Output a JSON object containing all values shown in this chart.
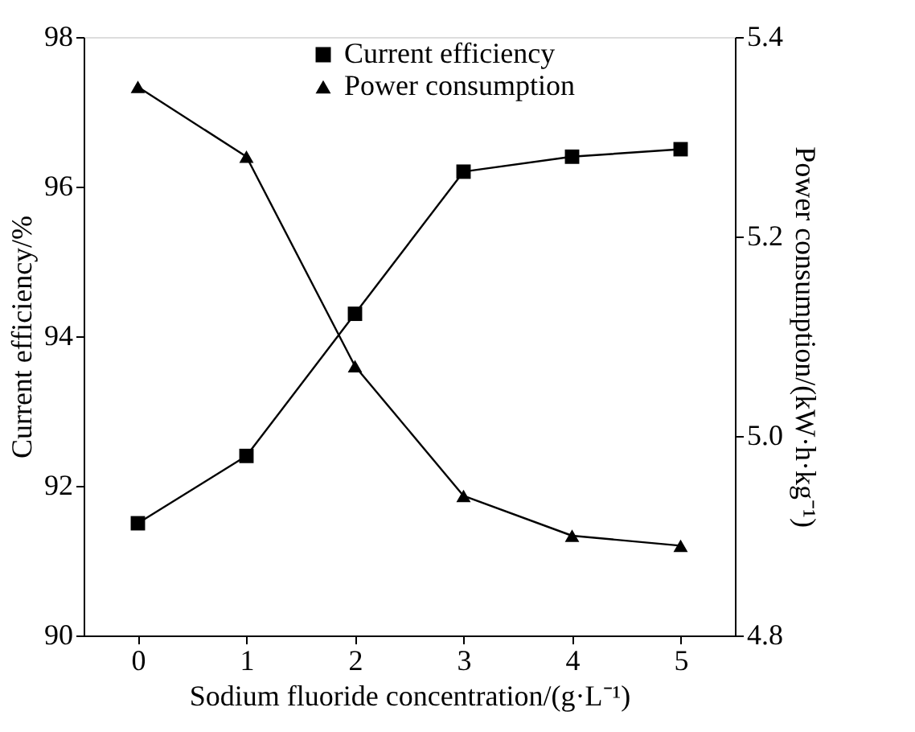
{
  "chart_data": {
    "type": "line",
    "xlabel": "Sodium fluoride concentration/(g·L⁻¹)",
    "ylabel": "Current efficiency/%",
    "y2label": "Power consumption/(kW·h·kg⁻¹)",
    "x": [
      0,
      1,
      2,
      3,
      4,
      5
    ],
    "xlim": [
      -0.5,
      5.5
    ],
    "xticks": [
      0,
      1,
      2,
      3,
      4,
      5
    ],
    "ylim": [
      90,
      98
    ],
    "yticks": [
      90,
      92,
      94,
      96,
      98
    ],
    "y2lim": [
      4.8,
      5.4
    ],
    "y2ticks": [
      {
        "value": 4.8,
        "label": "4.8"
      },
      {
        "value": 5.0,
        "label": "5.0"
      },
      {
        "value": 5.2,
        "label": "5.2"
      },
      {
        "value": 5.4,
        "label": "5.4"
      }
    ],
    "grid": false,
    "legend": "top",
    "line_style": "solid",
    "series": [
      {
        "name": "Current efficiency",
        "color": "#000000",
        "marker": "square",
        "values": [
          91.5,
          92.4,
          94.3,
          96.2,
          96.4,
          96.5
        ]
      },
      {
        "name": "Power consumption",
        "color": "#000000",
        "marker": "triangle",
        "axis": "y2",
        "values": [
          5.35,
          5.28,
          5.07,
          4.94,
          4.9,
          4.89
        ]
      }
    ]
  }
}
